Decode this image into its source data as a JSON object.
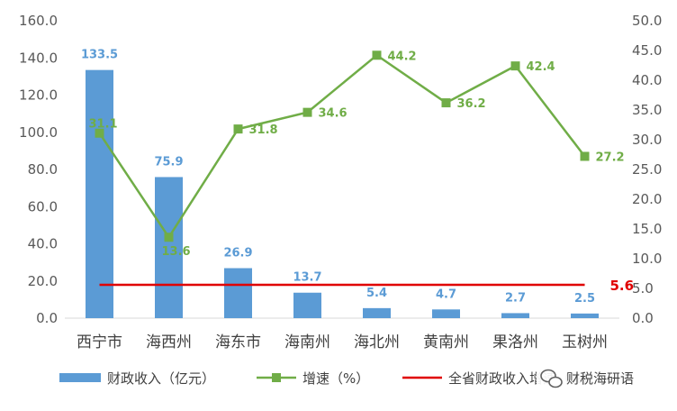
{
  "chart_data": {
    "type": "bar",
    "categories": [
      "西宁市",
      "海西州",
      "海东市",
      "海南州",
      "海北州",
      "黄南州",
      "果洛州",
      "玉树州"
    ],
    "series": [
      {
        "name": "财政收入（亿元）",
        "type": "bar",
        "axis": "left",
        "values": [
          133.5,
          75.9,
          26.9,
          13.7,
          5.4,
          4.7,
          2.7,
          2.5
        ],
        "labels": [
          "133.5",
          "75.9",
          "26.9",
          "13.7",
          "5.4",
          "4.7",
          "2.7",
          "2.5"
        ]
      },
      {
        "name": "增速（%）",
        "type": "line",
        "axis": "right",
        "values": [
          31.1,
          13.6,
          31.8,
          34.6,
          44.2,
          36.2,
          42.4,
          27.2
        ],
        "labels": [
          "31.1",
          "13.6",
          "31.8",
          "34.6",
          "44.2",
          "36.2",
          "42.4",
          "27.2"
        ]
      },
      {
        "name": "全省财政收入增速（%）",
        "type": "reference-line",
        "axis": "right",
        "value": 5.6,
        "label": "5.6"
      }
    ],
    "y_left": {
      "min": 0,
      "max": 160,
      "step": 20,
      "ticks": [
        "0.0",
        "20.0",
        "40.0",
        "60.0",
        "80.0",
        "100.0",
        "120.0",
        "140.0",
        "160.0"
      ]
    },
    "y_right": {
      "min": 0,
      "max": 50,
      "step": 5,
      "ticks": [
        "0.0",
        "5.0",
        "10.0",
        "15.0",
        "20.0",
        "25.0",
        "30.0",
        "35.0",
        "40.0",
        "45.0",
        "50.0"
      ]
    },
    "legend": {
      "position": "bottom",
      "items": [
        "财政收入（亿元）",
        "增速（%）",
        "全省财政收入增速（%）"
      ]
    },
    "grid": false,
    "colors": {
      "bar": "#5b9bd5",
      "line": "#70ad47",
      "reference": "#e00000",
      "axis": "#d9d9d9"
    }
  },
  "watermark": {
    "text": "财税海研语",
    "icon": "wechat-icon"
  }
}
